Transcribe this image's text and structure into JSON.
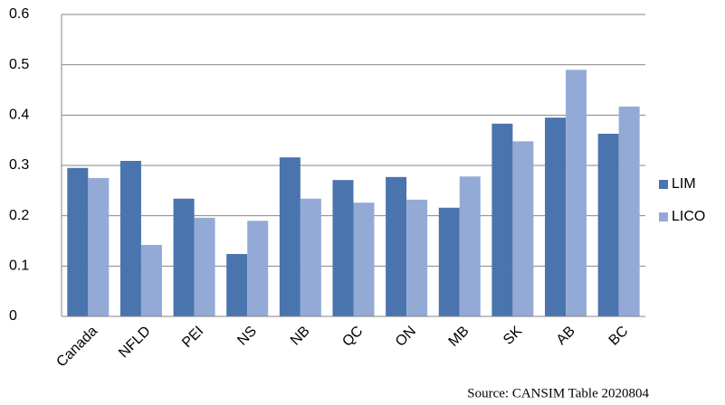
{
  "chart_data": {
    "type": "bar",
    "categories": [
      "Canada",
      "NFLD",
      "PEI",
      "NS",
      "NB",
      "QC",
      "ON",
      "MB",
      "SK",
      "AB",
      "BC"
    ],
    "series": [
      {
        "name": "LIM",
        "color": "#4a74ae",
        "values": [
          0.295,
          0.309,
          0.234,
          0.124,
          0.316,
          0.271,
          0.277,
          0.216,
          0.383,
          0.395,
          0.363
        ]
      },
      {
        "name": "LICO",
        "color": "#94aad6",
        "values": [
          0.275,
          0.142,
          0.196,
          0.19,
          0.234,
          0.226,
          0.232,
          0.278,
          0.348,
          0.49,
          0.417
        ]
      }
    ],
    "ylim": [
      0,
      0.6
    ],
    "yticks": [
      0,
      0.1,
      0.2,
      0.3,
      0.4,
      0.5,
      0.6
    ],
    "grid": true,
    "legend": "right",
    "source": "Source: CANSIM Table 2020804"
  }
}
